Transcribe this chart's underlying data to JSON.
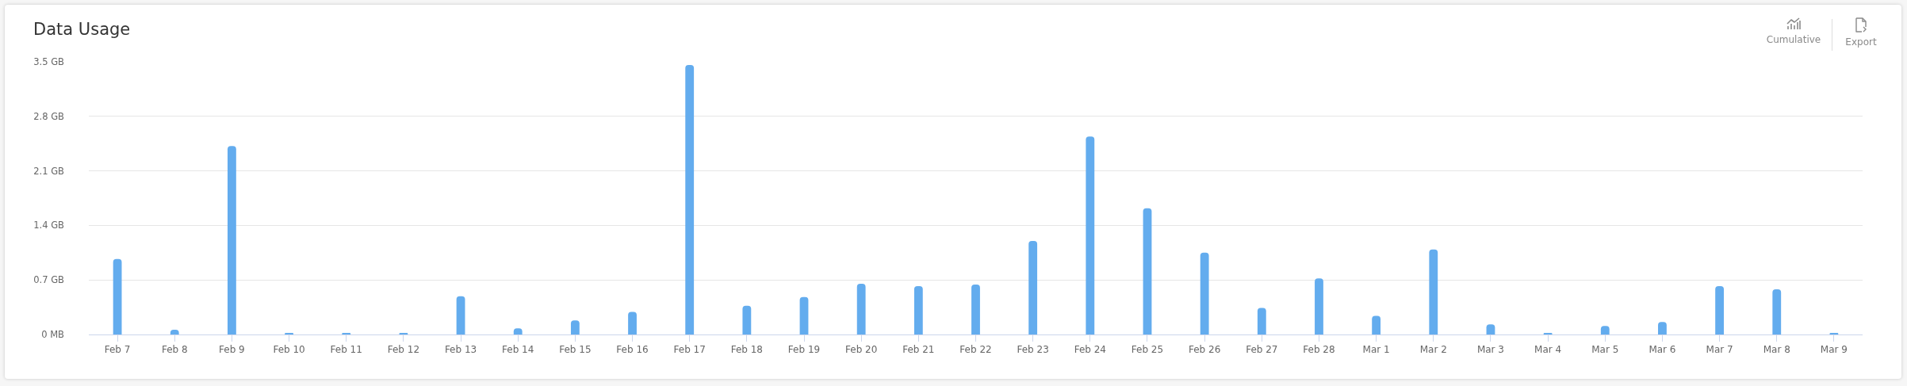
{
  "chart_data": {
    "type": "bar",
    "title": "Data Usage",
    "categories": [
      "Feb 7",
      "Feb 8",
      "Feb 9",
      "Feb 10",
      "Feb 11",
      "Feb 12",
      "Feb 13",
      "Feb 14",
      "Feb 15",
      "Feb 16",
      "Feb 17",
      "Feb 18",
      "Feb 19",
      "Feb 20",
      "Feb 21",
      "Feb 22",
      "Feb 23",
      "Feb 24",
      "Feb 25",
      "Feb 26",
      "Feb 27",
      "Feb 28",
      "Mar 1",
      "Mar 2",
      "Mar 3",
      "Mar 4",
      "Mar 5",
      "Mar 6",
      "Mar 7",
      "Mar 8",
      "Mar 9"
    ],
    "values": [
      0.97,
      0.06,
      2.42,
      0.02,
      0.02,
      0.02,
      0.49,
      0.08,
      0.18,
      0.29,
      3.46,
      0.37,
      0.48,
      0.65,
      0.62,
      0.64,
      1.2,
      2.54,
      1.62,
      1.05,
      0.34,
      0.72,
      0.24,
      1.09,
      0.13,
      0.02,
      0.11,
      0.16,
      0.62,
      0.58,
      0.02
    ],
    "color": "#63acee",
    "ylim": [
      0,
      3.5
    ],
    "yticks": [
      {
        "value": 0,
        "label": "0 MB"
      },
      {
        "value": 0.7,
        "label": "0.7 GB"
      },
      {
        "value": 1.4,
        "label": "1.4 GB"
      },
      {
        "value": 2.1,
        "label": "2.1 GB"
      },
      {
        "value": 2.8,
        "label": "2.8 GB"
      },
      {
        "value": 3.5,
        "label": "3.5 GB"
      }
    ],
    "grid": "y",
    "annotations": [
      "Cumulative",
      "Export"
    ]
  }
}
